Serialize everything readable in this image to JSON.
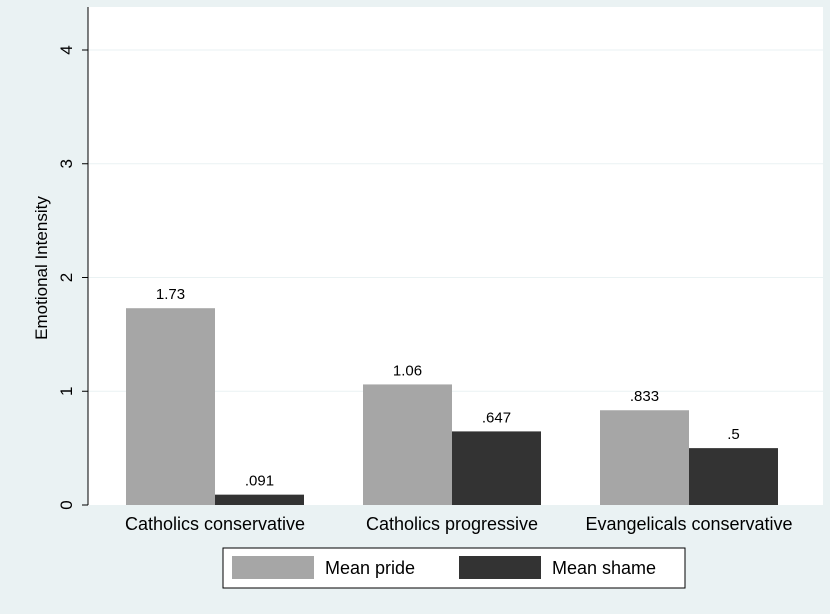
{
  "chart_data": {
    "type": "bar",
    "categories": [
      "Catholics conservative",
      "Catholics progressive",
      "Evangelicals conservative"
    ],
    "series": [
      {
        "name": "Mean pride",
        "values": [
          1.73,
          1.06,
          0.833
        ],
        "labels": [
          "1.73",
          "1.06",
          ".833"
        ],
        "color": "#a6a6a6"
      },
      {
        "name": "Mean shame",
        "values": [
          0.091,
          0.647,
          0.5
        ],
        "labels": [
          ".091",
          ".647",
          ".5"
        ],
        "color": "#333333"
      }
    ],
    "ylabel": "Emotional Intensity",
    "yticks": [
      0,
      1,
      2,
      3,
      4
    ],
    "ylim": [
      0,
      4.1
    ],
    "grid": true,
    "legend_position": "bottom",
    "colors": {
      "background": "#eaf2f3",
      "plot_area": "#ffffff",
      "grid": "#eaf2f3"
    }
  }
}
